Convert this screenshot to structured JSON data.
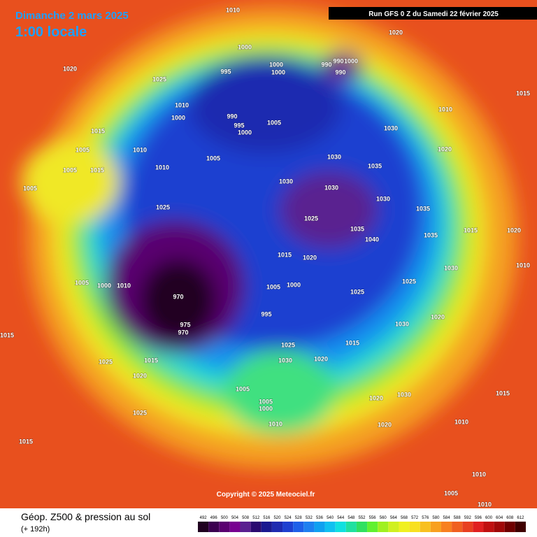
{
  "header": {
    "date": "Dimanche 2 mars 2025",
    "time": "1:00 locale",
    "run": "Run GFS 0 Z du Samedi 22 février 2025"
  },
  "footer": {
    "title": "Géop. Z500 & pression au sol",
    "lead": "(+ 192h)",
    "copyright": "Copyright © 2025 Meteociel.fr"
  },
  "pressure_labels": [
    "1010",
    "1020",
    "1020",
    "1025",
    "1000",
    "995",
    "1000",
    "1000",
    "990",
    "990",
    "1000",
    "990",
    "1015",
    "1010",
    "1000",
    "990",
    "995",
    "1000",
    "1005",
    "1030",
    "1010",
    "1015",
    "1005",
    "1010",
    "1005",
    "1030",
    "1035",
    "1020",
    "1005",
    "1015",
    "1010",
    "1030",
    "1030",
    "1030",
    "1005",
    "1025",
    "1025",
    "1035",
    "1040",
    "1035",
    "1035",
    "1015",
    "1015",
    "1020",
    "1030",
    "1005",
    "1000",
    "1010",
    "970",
    "1005",
    "1000",
    "995",
    "1025",
    "1025",
    "1020",
    "1030",
    "975",
    "970",
    "1015",
    "1025",
    "1030",
    "1020",
    "1025",
    "1015",
    "1020",
    "1005",
    "1005",
    "1000",
    "1020",
    "1030",
    "1015",
    "1010",
    "1020",
    "1010",
    "1025",
    "1015",
    "1010",
    "1005",
    "1010",
    "1015",
    "1010",
    "1020"
  ],
  "colorbar": {
    "ticks": [
      492,
      496,
      500,
      504,
      508,
      512,
      516,
      520,
      524,
      528,
      532,
      536,
      540,
      544,
      548,
      552,
      556,
      560,
      564,
      568,
      572,
      576,
      580,
      584,
      588,
      592,
      596,
      600,
      604,
      608,
      612
    ],
    "colors": [
      "#200020",
      "#3c0050",
      "#5a0070",
      "#780090",
      "#5a2090",
      "#2a0a70",
      "#1a1890",
      "#1e2ab0",
      "#1e40d0",
      "#1e60e8",
      "#1e80f0",
      "#10a0f0",
      "#10c0f0",
      "#10e0e0",
      "#20e0a0",
      "#30e060",
      "#60f030",
      "#a0f020",
      "#d0f020",
      "#f0f020",
      "#f8e020",
      "#f8c020",
      "#f8a020",
      "#f88020",
      "#f06020",
      "#e84020",
      "#e02020",
      "#c01010",
      "#a00808",
      "#700000",
      "#400000"
    ]
  }
}
